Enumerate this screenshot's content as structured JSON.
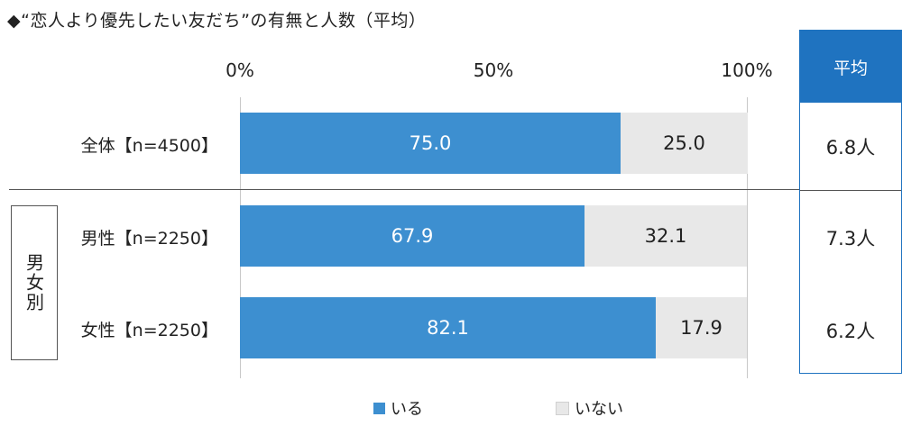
{
  "title": "◆“恋人より優先したい友だち”の有無と人数（平均）",
  "chart_data": {
    "type": "bar",
    "stacked": true,
    "orientation": "horizontal",
    "x_ticks": [
      "0%",
      "50%",
      "100%"
    ],
    "categories": [
      "全体【n=4500】",
      "男性【n=2250】",
      "女性【n=2250】"
    ],
    "series": [
      {
        "name": "いる",
        "values": [
          75.0,
          67.9,
          82.1
        ],
        "color": "#3d8fd0"
      },
      {
        "name": "いない",
        "values": [
          25.0,
          32.1,
          17.9
        ],
        "color": "#e8e8e8"
      }
    ],
    "value_labels": [
      [
        "75.0",
        "25.0"
      ],
      [
        "67.9",
        "32.1"
      ],
      [
        "82.1",
        "17.9"
      ]
    ],
    "group_label": "男女別",
    "average_header": "平均",
    "averages": [
      "6.8人",
      "7.3人",
      "6.2人"
    ],
    "legend": [
      "いる",
      "いない"
    ]
  }
}
